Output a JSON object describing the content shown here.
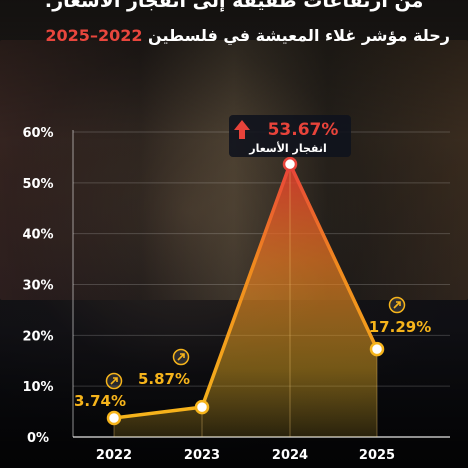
{
  "header": {
    "title": "من ارتفاعات طفيفة إلى انفجار الأسعار:",
    "subtitle": "رحلة مؤشر غلاء المعيشة في فلسطين",
    "subtitle_years": "2022–2025"
  },
  "colors": {
    "line": "#f6b41b",
    "peak": "#e8433a",
    "years": "#e8463d",
    "text": "#ffffff"
  },
  "chart_data": {
    "type": "line",
    "x": [
      "2022",
      "2023",
      "2024",
      "2025"
    ],
    "values": [
      3.74,
      5.87,
      53.67,
      17.29
    ],
    "labels": [
      "3.74%",
      "5.87%",
      "53.67%",
      "17.29%"
    ],
    "peak_note": "انفجار الأسعار",
    "yticks": [
      "0%",
      "10%",
      "20%",
      "30%",
      "40%",
      "50%",
      "60%"
    ],
    "ylim": [
      0,
      60
    ],
    "grid": true,
    "legend": "none"
  }
}
